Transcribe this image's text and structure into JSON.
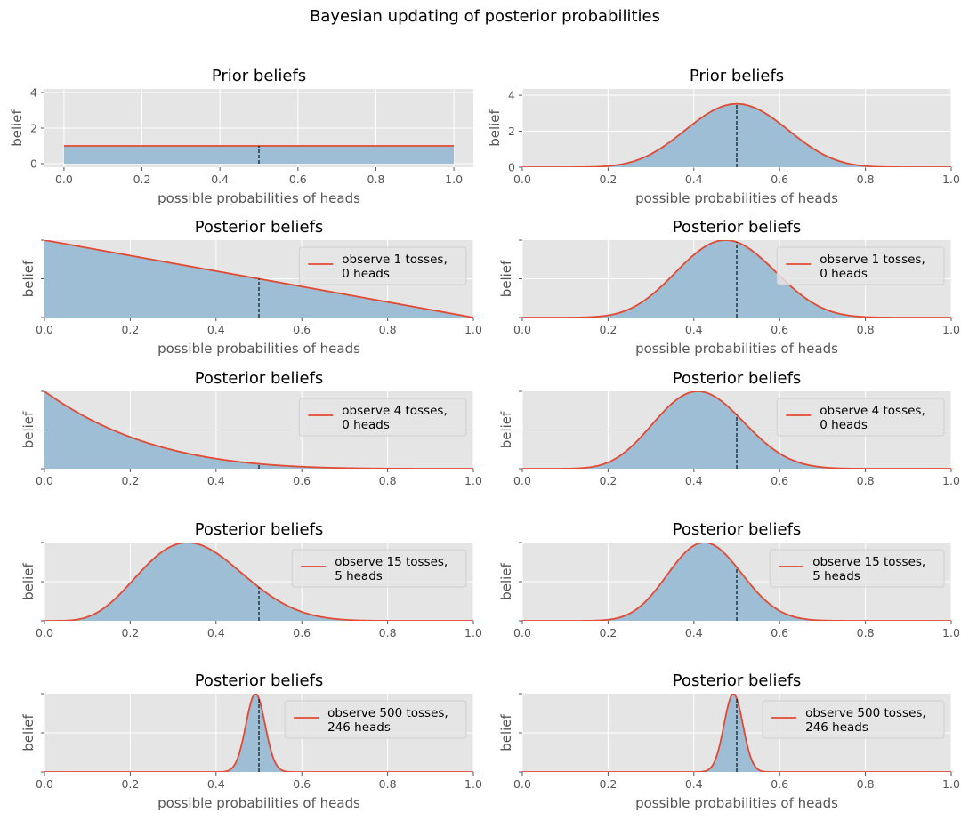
{
  "chart_data": {
    "title": "Bayesian updating of posterior probabilities",
    "type": "area",
    "x_range": [
      0,
      1
    ],
    "reference_line_x": 0.5,
    "line_color": "#E24A33",
    "fill_color": "#9DBED4",
    "background": "#E5E5E5",
    "grid": true,
    "xlabel": "possible probabilities of heads",
    "ylabel": "belief",
    "x_ticks": [
      "0.0",
      "0.2",
      "0.4",
      "0.6",
      "0.8",
      "1.0"
    ],
    "y_ticks_prior": [
      "0",
      "2",
      "4"
    ],
    "legend_position": "upper right",
    "columns": [
      {
        "name": "left",
        "prior": {
          "title": "Prior beliefs",
          "alpha": 1,
          "beta": 1,
          "ylim": [
            -0.2,
            4.2
          ],
          "xlim": [
            -0.05,
            1.05
          ]
        },
        "panels": [
          {
            "title": "Posterior beliefs",
            "n_tosses": 1,
            "heads": 0,
            "legend": "observe 1 tosses,\n 0 heads",
            "alpha": 1,
            "beta": 2
          },
          {
            "title": "Posterior beliefs",
            "n_tosses": 4,
            "heads": 0,
            "legend": "observe 4 tosses,\n 0 heads",
            "alpha": 1,
            "beta": 5
          },
          {
            "title": "Posterior beliefs",
            "n_tosses": 15,
            "heads": 5,
            "legend": "observe 15 tosses,\n 5 heads",
            "alpha": 6,
            "beta": 11
          },
          {
            "title": "Posterior beliefs",
            "n_tosses": 500,
            "heads": 246,
            "legend": "observe 500 tosses,\n 246 heads",
            "alpha": 247,
            "beta": 255
          }
        ]
      },
      {
        "name": "right",
        "prior": {
          "title": "Prior beliefs",
          "alpha": 10,
          "beta": 10,
          "ylim": [
            0,
            4.35
          ],
          "xlim": [
            0,
            1
          ]
        },
        "panels": [
          {
            "title": "Posterior beliefs",
            "n_tosses": 1,
            "heads": 0,
            "legend": "observe 1 tosses,\n 0 heads",
            "alpha": 10,
            "beta": 11
          },
          {
            "title": "Posterior beliefs",
            "n_tosses": 4,
            "heads": 0,
            "legend": "observe 4 tosses,\n 0 heads",
            "alpha": 10,
            "beta": 14
          },
          {
            "title": "Posterior beliefs",
            "n_tosses": 15,
            "heads": 5,
            "legend": "observe 15 tosses,\n 5 heads",
            "alpha": 15,
            "beta": 20
          },
          {
            "title": "Posterior beliefs",
            "n_tosses": 500,
            "heads": 246,
            "legend": "observe 500 tosses,\n 246 heads",
            "alpha": 256,
            "beta": 264
          }
        ]
      }
    ]
  }
}
